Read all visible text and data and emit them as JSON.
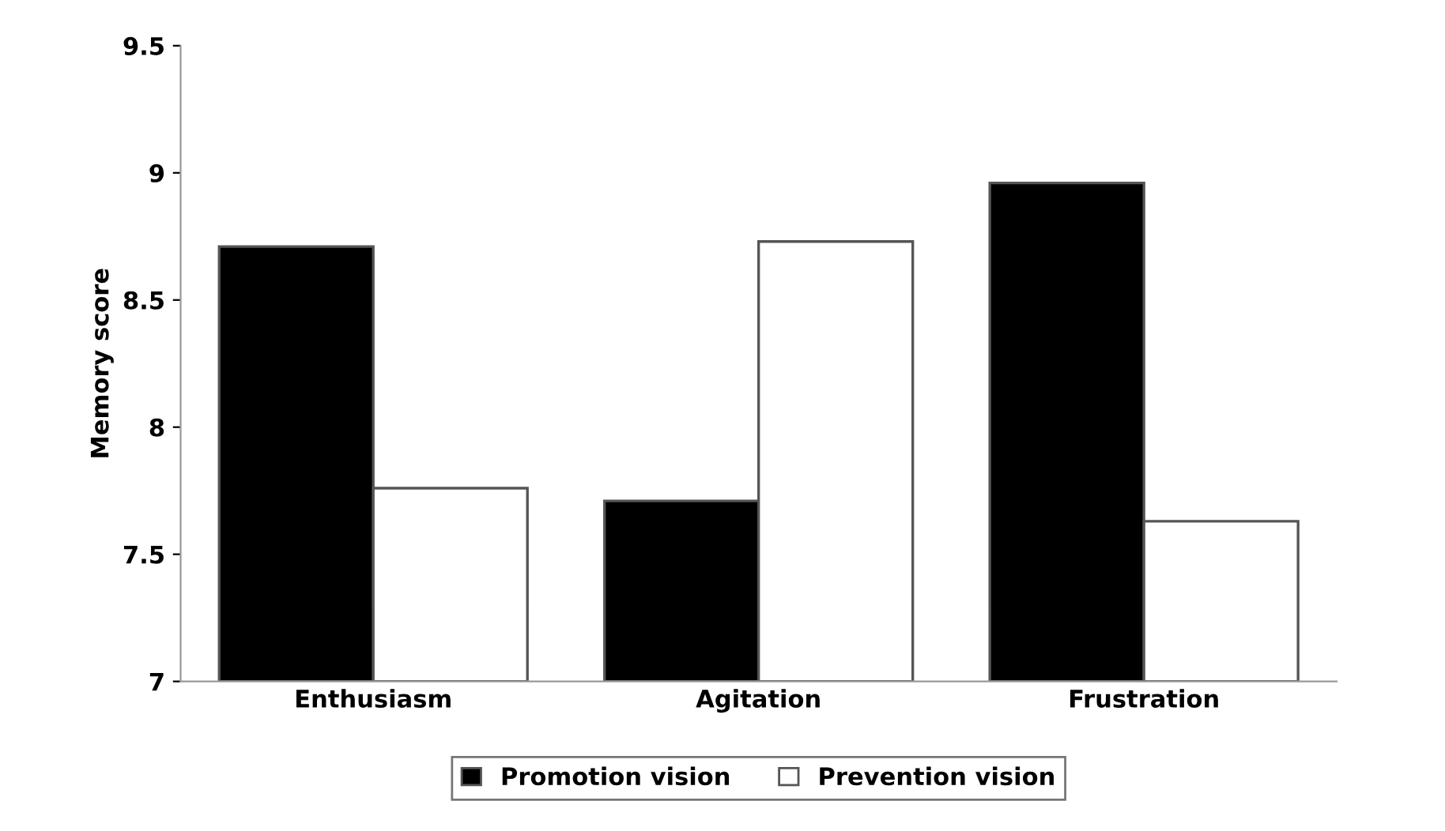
{
  "chart_data": {
    "type": "bar",
    "ylabel": "Memory score",
    "categories": [
      "Enthusiasm",
      "Agitation",
      "Frustration"
    ],
    "series": [
      {
        "name": "Promotion vision",
        "color": "#000000",
        "values": [
          8.71,
          7.71,
          8.96
        ]
      },
      {
        "name": "Prevention vision",
        "color": "#ffffff",
        "values": [
          7.76,
          8.73,
          7.63
        ]
      }
    ],
    "ylim": [
      7,
      9.5
    ],
    "yticks": [
      7,
      7.5,
      8,
      8.5,
      9,
      9.5
    ],
    "grid": false,
    "legend": "bottom"
  }
}
